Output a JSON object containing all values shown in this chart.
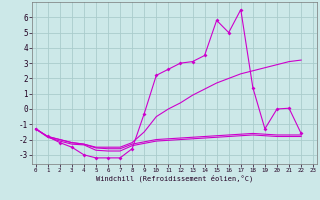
{
  "xlabel": "Windchill (Refroidissement éolien,°C)",
  "background_color": "#cce8e8",
  "grid_color": "#aacccc",
  "line_color": "#cc00cc",
  "x_ticks": [
    0,
    1,
    2,
    3,
    4,
    5,
    6,
    7,
    8,
    9,
    10,
    11,
    12,
    13,
    14,
    15,
    16,
    17,
    18,
    19,
    20,
    21,
    22,
    23
  ],
  "y_ticks": [
    -3,
    -2,
    -1,
    0,
    1,
    2,
    3,
    4,
    5,
    6
  ],
  "ylim": [
    -3.6,
    7.0
  ],
  "xlim": [
    -0.3,
    23.3
  ],
  "line1_x": [
    0,
    1,
    2,
    3,
    4,
    5,
    6,
    7,
    8,
    9,
    10,
    11,
    12,
    13,
    14,
    15,
    16,
    17,
    18,
    19,
    20,
    21,
    22
  ],
  "line1_y": [
    -1.3,
    -1.8,
    -2.2,
    -2.5,
    -3.0,
    -3.2,
    -3.2,
    -3.2,
    -2.6,
    -0.3,
    2.2,
    2.6,
    3.0,
    3.1,
    3.5,
    5.8,
    5.0,
    6.5,
    1.4,
    -1.3,
    0.0,
    0.05,
    -1.6
  ],
  "line2_x": [
    0,
    1,
    2,
    3,
    4,
    5,
    6,
    7,
    8,
    9,
    10,
    11,
    12,
    13,
    14,
    15,
    16,
    17,
    18,
    19,
    20,
    21,
    22
  ],
  "line2_y": [
    -1.3,
    -1.8,
    -2.0,
    -2.2,
    -2.3,
    -2.5,
    -2.5,
    -2.5,
    -2.2,
    -1.5,
    -0.5,
    0.0,
    0.4,
    0.9,
    1.3,
    1.7,
    2.0,
    2.3,
    2.5,
    2.7,
    2.9,
    3.1,
    3.2
  ],
  "line3_x": [
    0,
    1,
    2,
    3,
    4,
    5,
    6,
    7,
    8,
    9,
    10,
    11,
    12,
    13,
    14,
    15,
    16,
    17,
    18,
    19,
    20,
    21,
    22
  ],
  "line3_y": [
    -1.3,
    -1.8,
    -2.0,
    -2.2,
    -2.3,
    -2.55,
    -2.6,
    -2.6,
    -2.3,
    -2.15,
    -2.0,
    -1.95,
    -1.9,
    -1.85,
    -1.8,
    -1.75,
    -1.7,
    -1.65,
    -1.6,
    -1.65,
    -1.7,
    -1.7,
    -1.7
  ],
  "line4_x": [
    0,
    1,
    2,
    3,
    4,
    5,
    6,
    7,
    8,
    9,
    10,
    11,
    12,
    13,
    14,
    15,
    16,
    17,
    18,
    19,
    20,
    21,
    22
  ],
  "line4_y": [
    -1.3,
    -1.85,
    -2.1,
    -2.3,
    -2.35,
    -2.7,
    -2.75,
    -2.75,
    -2.4,
    -2.25,
    -2.1,
    -2.05,
    -2.0,
    -1.95,
    -1.9,
    -1.85,
    -1.8,
    -1.75,
    -1.7,
    -1.75,
    -1.8,
    -1.8,
    -1.8
  ]
}
